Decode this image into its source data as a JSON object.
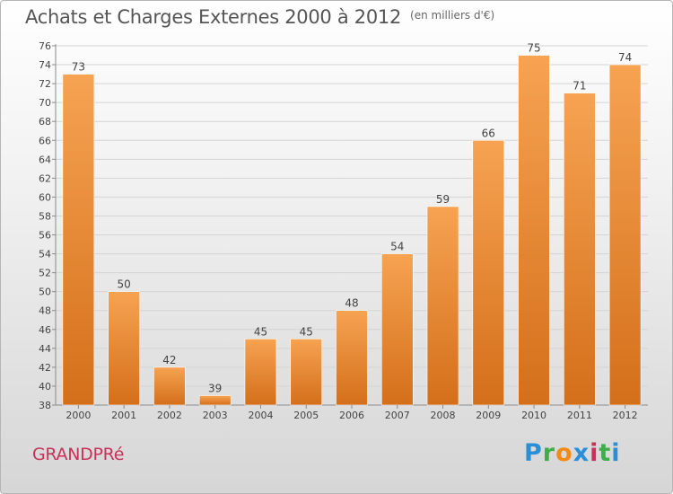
{
  "title": "Achats et Charges Externes 2000 à 2012",
  "unit": "(en milliers d'€)",
  "town": "GRANDPRé",
  "logo": [
    "P",
    "r",
    "o",
    "x",
    "i",
    "t",
    "i"
  ],
  "colors": {
    "bar_top": "#f6a352",
    "bar_bottom": "#d46f1a",
    "grid": "#d4d4d4",
    "axis": "#8a8a8a",
    "town": "#c8325a"
  },
  "chart_data": {
    "type": "bar",
    "title": "Achats et Charges Externes 2000 à 2012",
    "ylabel": "en milliers d'€",
    "categories": [
      "2000",
      "2001",
      "2002",
      "2003",
      "2004",
      "2005",
      "2006",
      "2007",
      "2008",
      "2009",
      "2010",
      "2011",
      "2012"
    ],
    "values": [
      73,
      50,
      42,
      39,
      45,
      45,
      48,
      54,
      59,
      66,
      75,
      71,
      74
    ],
    "ylim": [
      38,
      76
    ],
    "yticks": [
      38,
      40,
      42,
      44,
      46,
      48,
      50,
      52,
      54,
      56,
      58,
      60,
      62,
      64,
      66,
      68,
      70,
      72,
      74,
      76
    ],
    "grid": true
  }
}
